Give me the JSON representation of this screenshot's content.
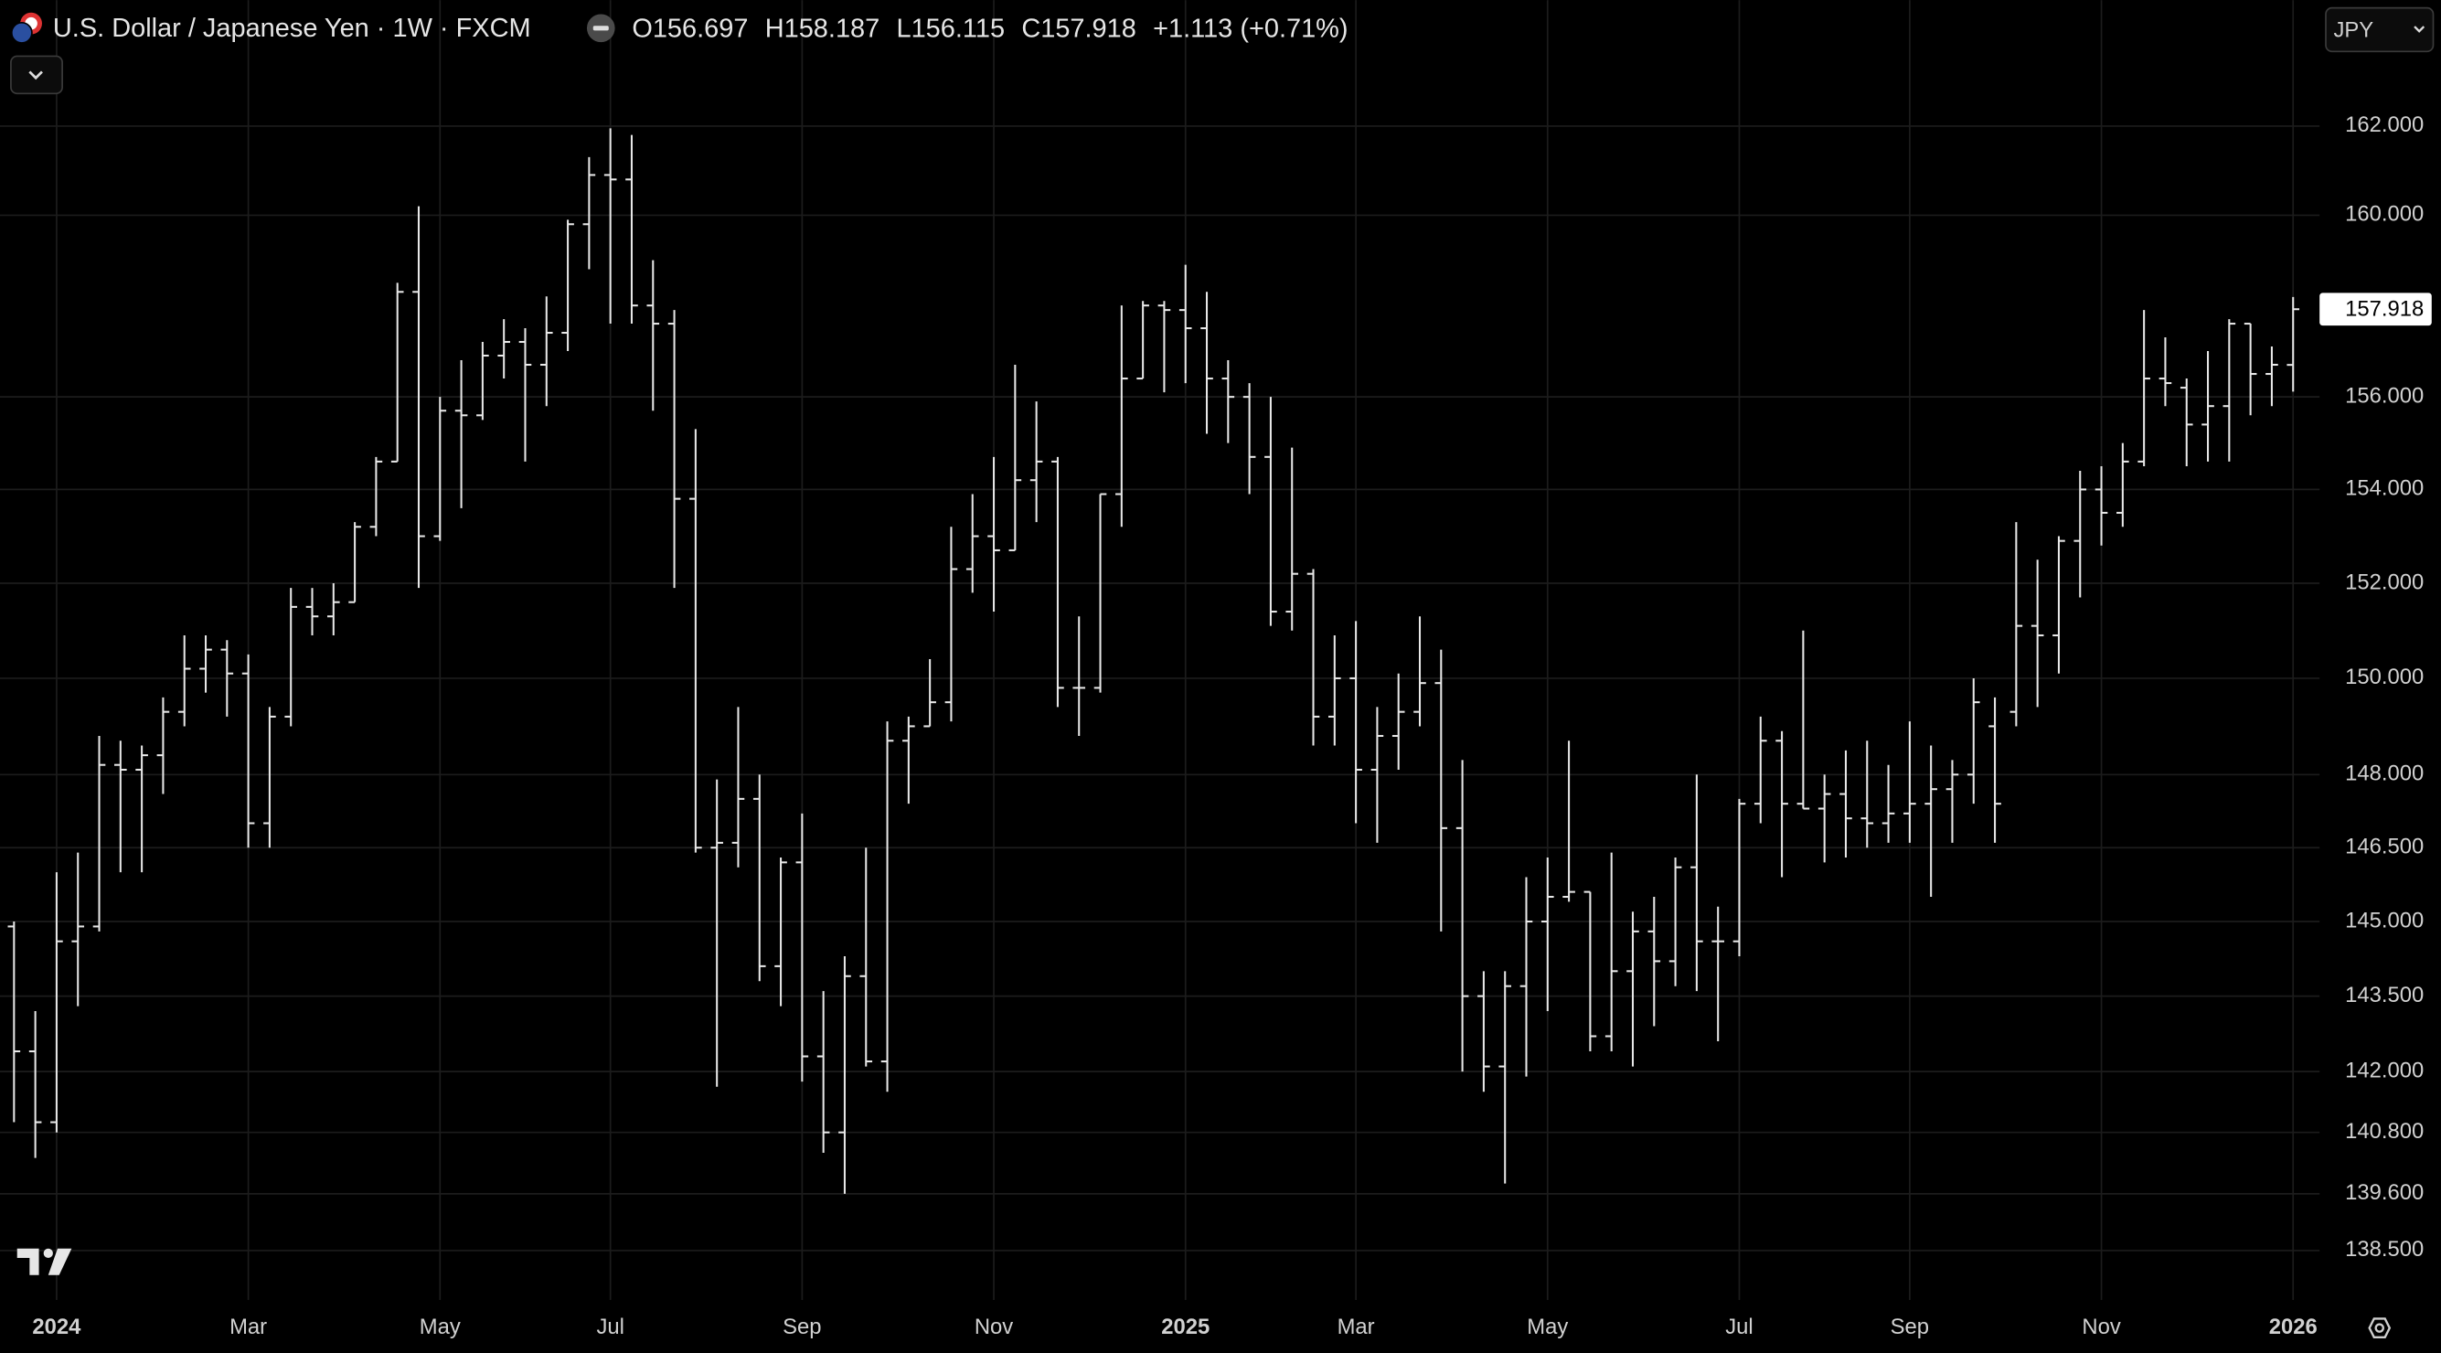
{
  "header": {
    "symbol": "U.S. Dollar / Japanese Yen · 1W · FXCM",
    "open_label": "O",
    "high_label": "H",
    "low_label": "L",
    "close_label": "C",
    "change": "+1.113 (+0.71%)",
    "currency": "JPY"
  },
  "chart_data": {
    "type": "ohlc",
    "color": "#e8e8e8",
    "log_scale": true,
    "grid": true,
    "categories": [
      null,
      null,
      "2024",
      null,
      null,
      null,
      null,
      null,
      null,
      null,
      null,
      "Mar",
      null,
      null,
      null,
      null,
      null,
      null,
      null,
      null,
      "May",
      null,
      null,
      null,
      null,
      null,
      null,
      null,
      "Jul",
      null,
      null,
      null,
      null,
      null,
      null,
      null,
      null,
      "Sep",
      null,
      null,
      null,
      null,
      null,
      null,
      null,
      null,
      "Nov",
      null,
      null,
      null,
      null,
      null,
      null,
      null,
      null,
      "2025",
      null,
      null,
      null,
      null,
      null,
      null,
      null,
      "Mar",
      null,
      null,
      null,
      null,
      null,
      null,
      null,
      null,
      "May",
      null,
      null,
      null,
      null,
      null,
      null,
      null,
      null,
      "Jul",
      null,
      null,
      null,
      null,
      null,
      null,
      null,
      "Sep",
      null,
      null,
      null,
      null,
      null,
      null,
      null,
      null,
      "Nov",
      null,
      null,
      null,
      null,
      null,
      null,
      null,
      null,
      "2026"
    ],
    "open": [
      144.9,
      142.4,
      141.0,
      144.6,
      144.9,
      148.2,
      148.1,
      148.4,
      149.3,
      150.2,
      150.6,
      150.1,
      147.0,
      149.2,
      151.5,
      151.3,
      151.6,
      153.2,
      154.6,
      158.3,
      153.0,
      155.7,
      155.6,
      156.9,
      157.2,
      156.7,
      157.4,
      159.8,
      160.9,
      160.8,
      158.0,
      157.6,
      153.8,
      146.5,
      146.6,
      147.5,
      144.1,
      146.2,
      142.3,
      140.8,
      143.9,
      142.2,
      148.7,
      149.0,
      149.5,
      152.3,
      153.0,
      152.7,
      154.2,
      154.6,
      149.8,
      149.8,
      153.9,
      156.4,
      158.0,
      157.9,
      157.5,
      156.4,
      156.0,
      154.7,
      151.4,
      152.2,
      149.2,
      150.0,
      148.1,
      148.8,
      149.3,
      149.9,
      146.9,
      143.5,
      142.1,
      143.7,
      145.0,
      145.5,
      145.6,
      142.7,
      144.0,
      144.8,
      144.2,
      146.1,
      144.6,
      144.6,
      147.4,
      148.7,
      147.4,
      147.3,
      147.6,
      147.1,
      147.0,
      147.2,
      147.4,
      147.7,
      148.0,
      149.0,
      149.3,
      151.1,
      150.9,
      152.9,
      154.0,
      153.5,
      154.6,
      156.4,
      156.2,
      155.4,
      155.8,
      157.6,
      156.5,
      156.697
    ],
    "high": [
      145.0,
      143.2,
      146.0,
      146.4,
      148.8,
      148.7,
      148.6,
      149.6,
      150.9,
      150.9,
      150.8,
      150.5,
      149.4,
      151.9,
      151.9,
      152.0,
      153.3,
      154.7,
      158.5,
      160.2,
      156.0,
      156.8,
      157.2,
      157.7,
      157.5,
      158.2,
      159.9,
      161.3,
      161.95,
      161.8,
      159.0,
      157.9,
      155.3,
      147.9,
      149.4,
      148.0,
      146.3,
      147.2,
      143.6,
      144.3,
      146.5,
      149.1,
      149.2,
      150.4,
      153.2,
      153.9,
      154.7,
      156.7,
      155.9,
      154.7,
      151.3,
      153.9,
      158.0,
      158.1,
      158.1,
      158.9,
      158.3,
      156.8,
      156.3,
      156.0,
      154.9,
      152.3,
      150.9,
      151.2,
      149.4,
      150.1,
      151.3,
      150.6,
      148.3,
      144.0,
      144.0,
      145.9,
      146.3,
      148.7,
      145.6,
      146.4,
      145.2,
      145.5,
      146.3,
      148.0,
      145.3,
      147.5,
      149.2,
      148.9,
      151.0,
      148.0,
      148.5,
      148.7,
      148.2,
      149.1,
      148.6,
      148.3,
      150.0,
      149.6,
      153.3,
      152.5,
      153.0,
      154.4,
      154.5,
      155.0,
      157.9,
      157.3,
      156.4,
      157.0,
      157.7,
      157.6,
      157.1,
      158.187
    ],
    "low": [
      141.0,
      140.3,
      140.8,
      143.3,
      144.8,
      146.0,
      146.0,
      147.6,
      149.0,
      149.7,
      149.2,
      146.5,
      146.5,
      149.0,
      150.9,
      150.9,
      151.6,
      153.0,
      154.6,
      151.9,
      152.9,
      153.6,
      155.5,
      156.4,
      154.6,
      155.8,
      157.0,
      158.8,
      157.6,
      157.6,
      155.7,
      151.9,
      146.4,
      141.7,
      146.1,
      143.8,
      143.3,
      141.8,
      140.4,
      139.6,
      142.1,
      141.6,
      147.4,
      149.0,
      149.1,
      151.8,
      151.4,
      152.7,
      153.3,
      149.4,
      148.8,
      149.7,
      153.2,
      156.4,
      156.1,
      156.3,
      155.2,
      155.0,
      153.9,
      151.1,
      151.0,
      148.6,
      148.6,
      147.0,
      146.6,
      148.1,
      149.0,
      144.8,
      142.0,
      141.6,
      139.8,
      141.9,
      143.2,
      145.4,
      142.4,
      142.4,
      142.1,
      142.9,
      143.7,
      143.6,
      142.6,
      144.3,
      147.0,
      145.9,
      147.3,
      146.2,
      146.3,
      146.5,
      146.6,
      146.6,
      145.5,
      146.6,
      147.4,
      146.6,
      149.0,
      149.4,
      150.1,
      151.7,
      152.8,
      153.2,
      154.5,
      155.8,
      154.5,
      154.6,
      154.6,
      155.6,
      155.8,
      156.115
    ],
    "close": [
      142.4,
      141.0,
      144.6,
      144.9,
      148.2,
      148.1,
      148.4,
      149.3,
      150.2,
      150.6,
      150.1,
      147.0,
      149.2,
      151.5,
      151.3,
      151.6,
      153.2,
      154.6,
      158.3,
      153.0,
      155.7,
      155.6,
      156.9,
      157.2,
      156.7,
      157.4,
      159.8,
      160.9,
      160.8,
      158.0,
      157.6,
      153.8,
      146.5,
      146.6,
      147.5,
      144.1,
      146.2,
      142.3,
      140.8,
      143.9,
      142.2,
      148.7,
      149.0,
      149.5,
      152.3,
      153.0,
      152.7,
      154.2,
      154.6,
      149.8,
      149.8,
      153.9,
      156.4,
      158.0,
      157.9,
      157.5,
      156.4,
      156.0,
      154.7,
      151.4,
      152.2,
      149.2,
      150.0,
      148.1,
      148.8,
      149.3,
      149.9,
      146.9,
      143.5,
      142.1,
      143.7,
      145.0,
      145.5,
      145.6,
      142.7,
      144.0,
      144.8,
      144.2,
      146.1,
      144.6,
      144.6,
      147.4,
      148.7,
      147.4,
      147.3,
      147.6,
      147.1,
      147.0,
      147.2,
      147.4,
      147.7,
      148.0,
      149.5,
      147.4,
      151.1,
      150.9,
      152.9,
      154.0,
      153.5,
      154.6,
      156.4,
      156.3,
      155.4,
      155.8,
      157.6,
      156.5,
      156.7,
      157.918
    ],
    "ylim": [
      137.55,
      164.87
    ],
    "yticks": [
      {
        "value": 138.5,
        "label": "138.500"
      },
      {
        "value": 139.6,
        "label": "139.600"
      },
      {
        "value": 140.8,
        "label": "140.800"
      },
      {
        "value": 142,
        "label": "142.000"
      },
      {
        "value": 143.5,
        "label": "143.500"
      },
      {
        "value": 145,
        "label": "145.000"
      },
      {
        "value": 146.5,
        "label": "146.500"
      },
      {
        "value": 148,
        "label": "148.000"
      },
      {
        "value": 150,
        "label": "150.000"
      },
      {
        "value": 152,
        "label": "152.000"
      },
      {
        "value": 154,
        "label": "154.000"
      },
      {
        "value": 156,
        "label": "156.000"
      },
      {
        "value": 160,
        "label": "160.000"
      },
      {
        "value": 162,
        "label": "162.000"
      }
    ]
  }
}
